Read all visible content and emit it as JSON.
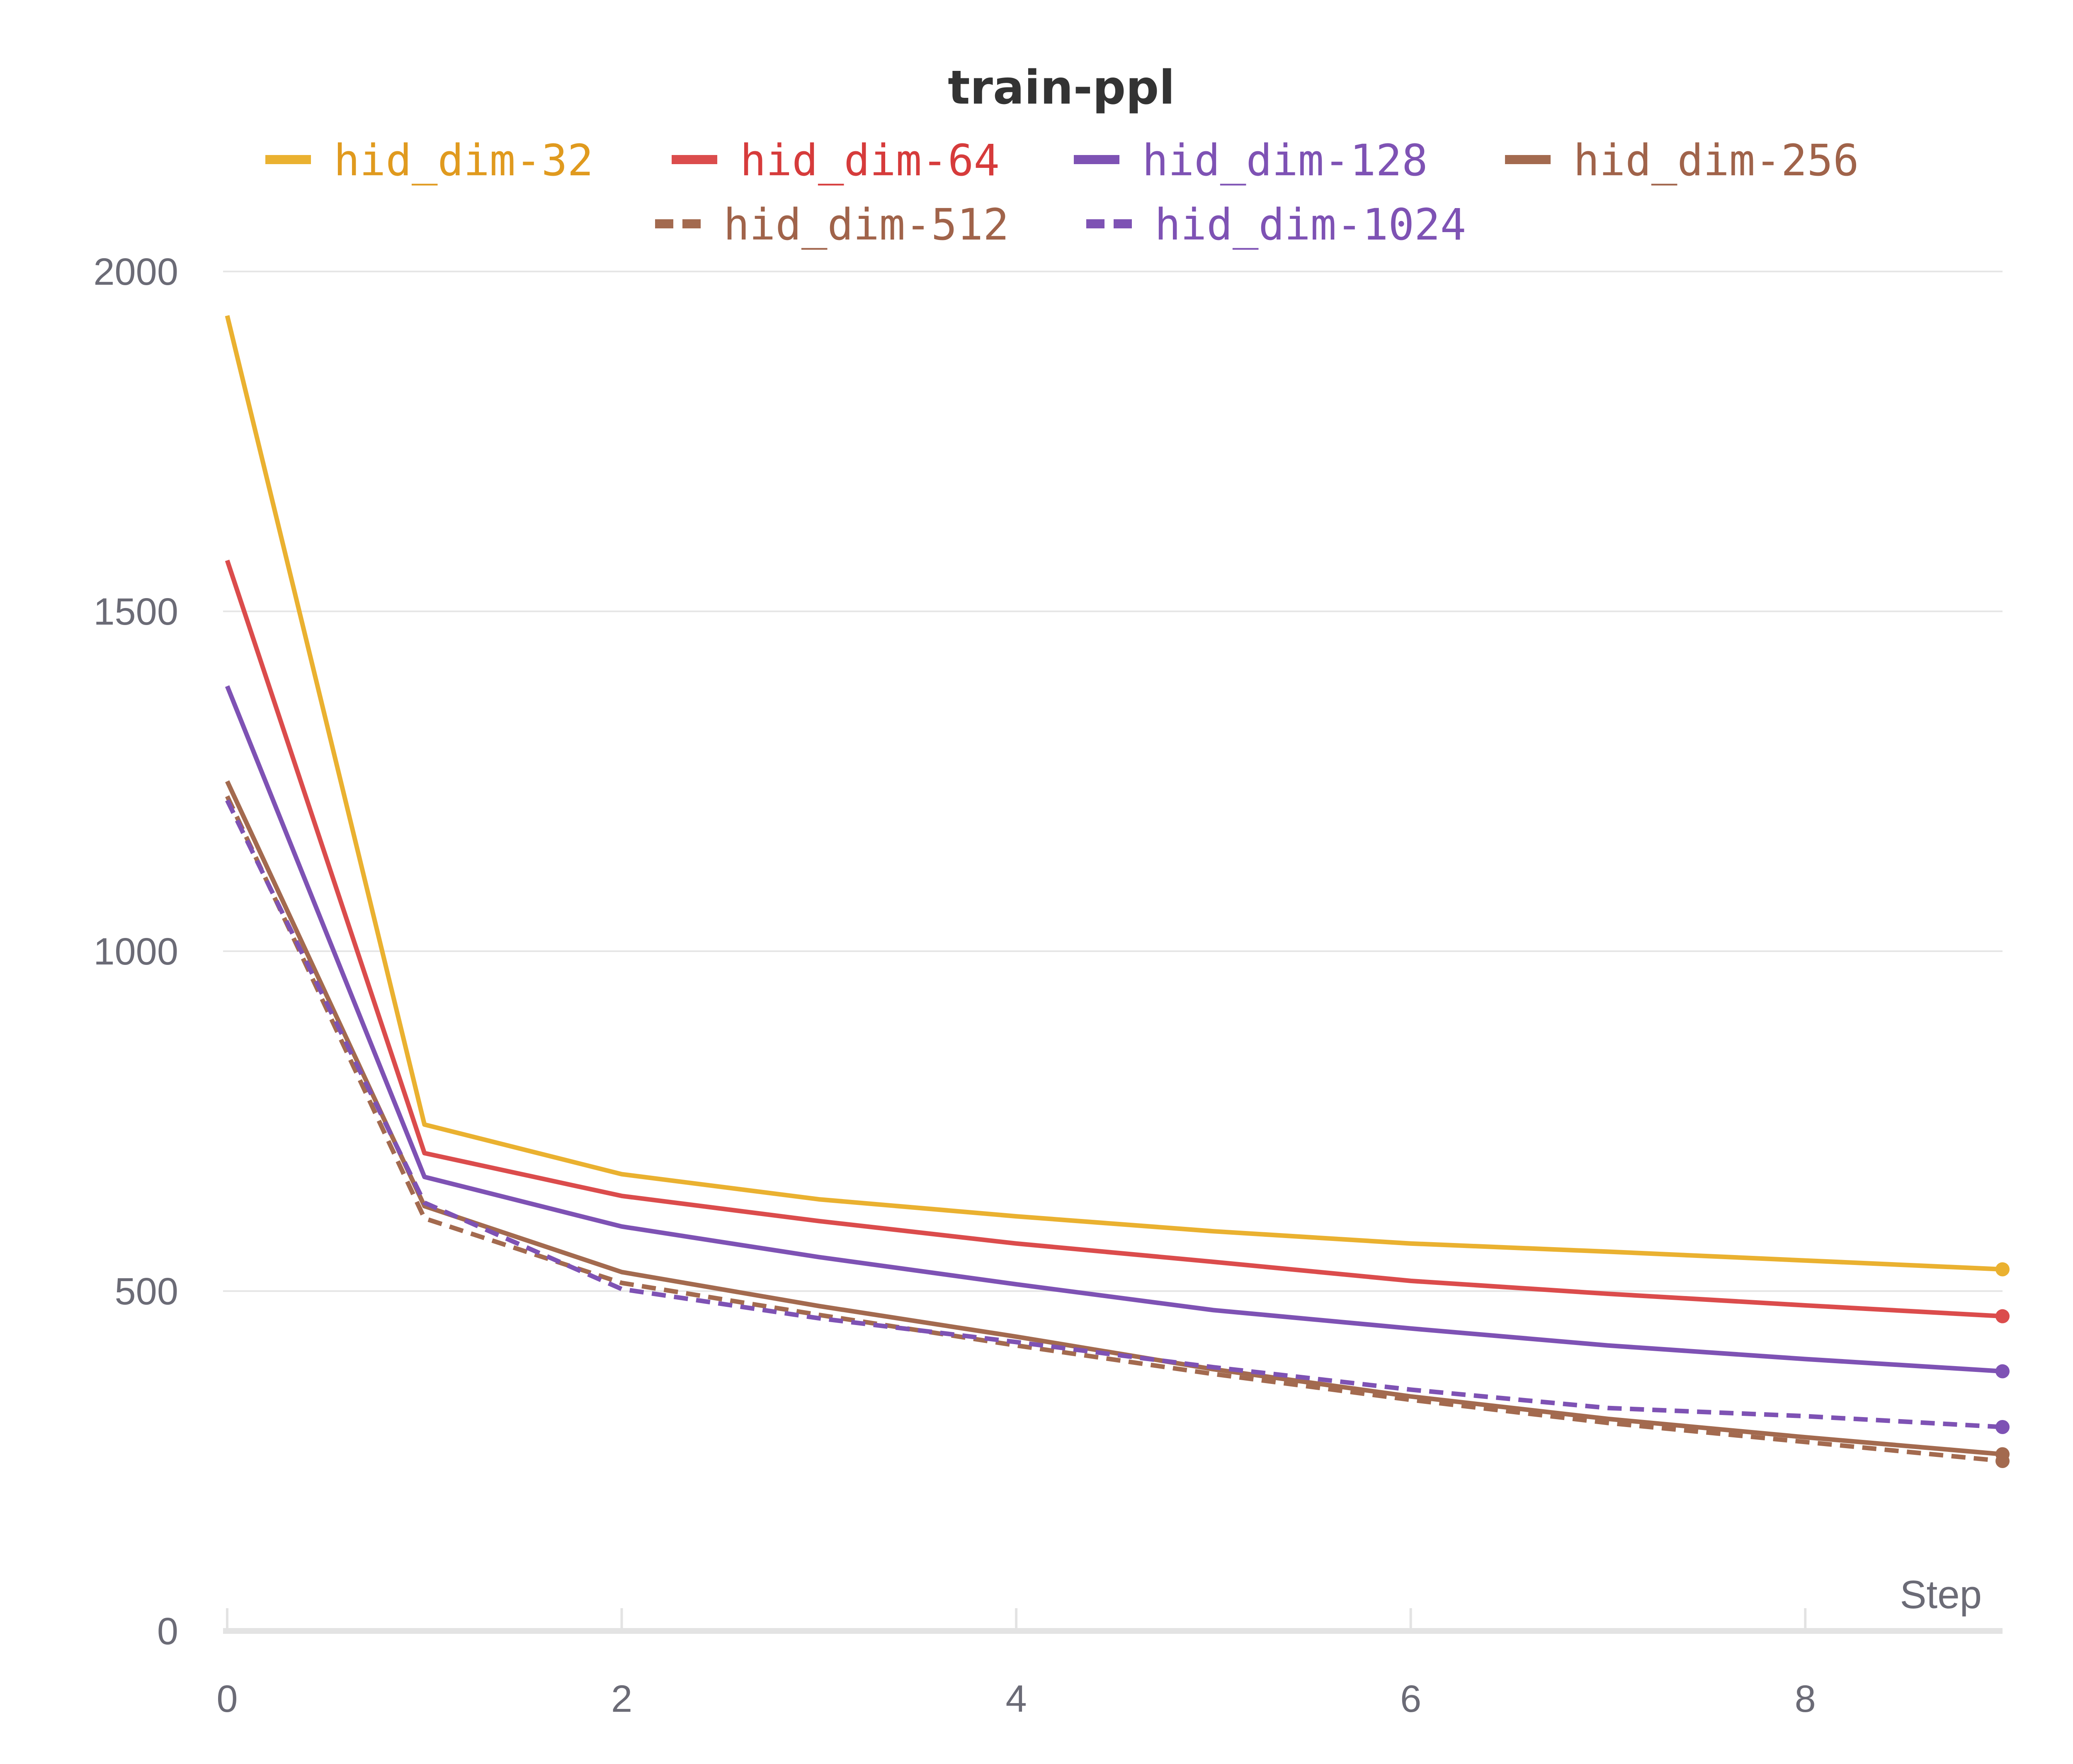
{
  "chart_data": {
    "type": "line",
    "title": "train-ppl",
    "xlabel": "Step",
    "ylabel": "",
    "xlim": [
      0,
      9
    ],
    "ylim": [
      0,
      2000
    ],
    "x_ticks": [
      "0",
      "2",
      "4",
      "6",
      "8"
    ],
    "y_ticks": [
      "0",
      "500",
      "1000",
      "1500",
      "2000"
    ],
    "grid": "horizontal",
    "legend_position": "top",
    "x": [
      0,
      1,
      2,
      3,
      4,
      5,
      6,
      7,
      8,
      9
    ],
    "series": [
      {
        "name": "hid_dim-32",
        "color": "#eab130",
        "text_color": "#e09a1e",
        "dashed": false,
        "values": [
          1935,
          745,
          672,
          635,
          610,
          588,
          570,
          558,
          545,
          532
        ]
      },
      {
        "name": "hid_dim-64",
        "color": "#db4c4c",
        "text_color": "#d63b3b",
        "dashed": false,
        "values": [
          1575,
          703,
          640,
          603,
          570,
          543,
          515,
          496,
          479,
          463
        ]
      },
      {
        "name": "hid_dim-128",
        "color": "#7e52b4",
        "text_color": "#7e52b4",
        "dashed": false,
        "values": [
          1390,
          668,
          595,
          550,
          510,
          472,
          445,
          420,
          400,
          382
        ]
      },
      {
        "name": "hid_dim-256",
        "color": "#a36a4f",
        "text_color": "#a0634a",
        "dashed": false,
        "values": [
          1250,
          625,
          528,
          478,
          433,
          385,
          345,
          312,
          285,
          260
        ]
      },
      {
        "name": "hid_dim-512",
        "color": "#a36a4f",
        "text_color": "#a0634a",
        "dashed": true,
        "values": [
          1228,
          607,
          512,
          465,
          420,
          378,
          340,
          306,
          278,
          250
        ]
      },
      {
        "name": "hid_dim-1024",
        "color": "#7e52b4",
        "text_color": "#7e52b4",
        "dashed": true,
        "values": [
          1222,
          630,
          503,
          460,
          425,
          388,
          355,
          328,
          316,
          300
        ]
      }
    ]
  }
}
